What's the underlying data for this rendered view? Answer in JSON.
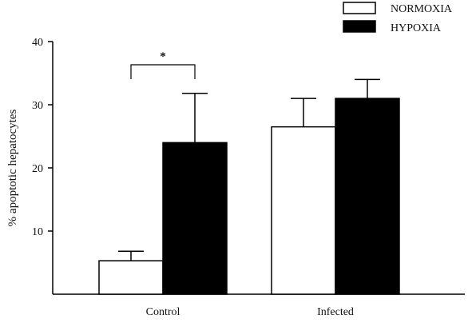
{
  "chart_data": {
    "type": "bar",
    "categories": [
      "Control",
      "Infected"
    ],
    "series": [
      {
        "name": "NORMOXIA",
        "fill": "#ffffff",
        "values": [
          5.3,
          26.5
        ],
        "errors": [
          1.5,
          4.5
        ]
      },
      {
        "name": "HYPOXIA",
        "fill": "#000000",
        "values": [
          24.0,
          31.0
        ],
        "errors": [
          7.8,
          3.0
        ]
      }
    ],
    "ylabel": "% apoptotic hepatocytes",
    "xlabel": "",
    "ylim": [
      0,
      40
    ],
    "yticks": [
      10,
      20,
      30,
      40
    ],
    "legend_position": "top-right",
    "significance": {
      "label": "*",
      "category": "Control"
    }
  }
}
